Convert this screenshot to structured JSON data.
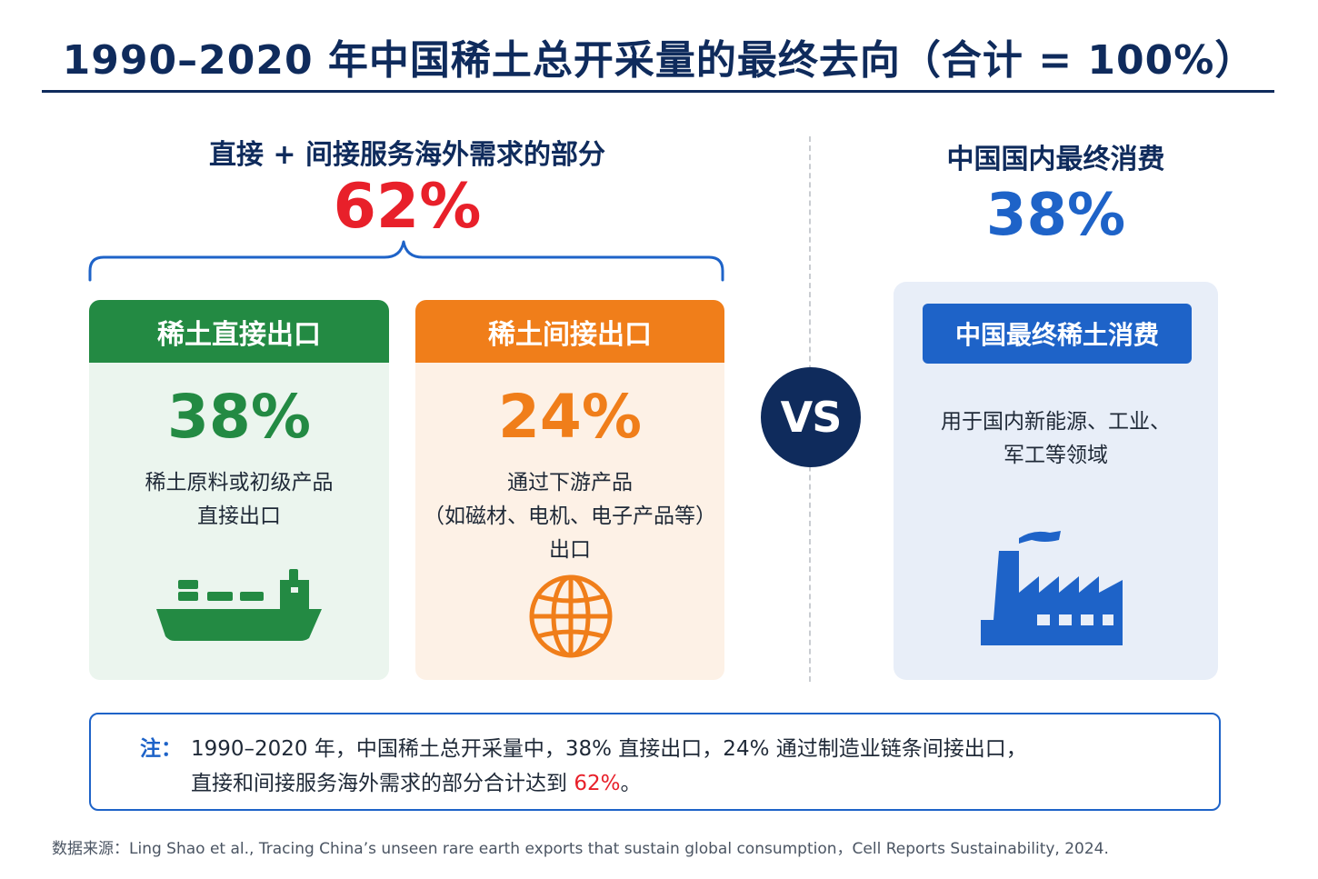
{
  "title": "1990–2020 年中国稀土总开采量的最终去向（合计 = 100%）",
  "left_group": {
    "heading": "直接 + 间接服务海外需求的部分",
    "percent": "62%"
  },
  "right_group": {
    "heading": "中国国内最终消费",
    "percent": "38%"
  },
  "cards": {
    "direct": {
      "header": "稀土直接出口",
      "value": "38%",
      "desc": [
        "稀土原料或初级产品",
        "直接出口"
      ],
      "icon": "cargo-ship-icon"
    },
    "indirect": {
      "header": "稀土间接出口",
      "value": "24%",
      "desc": [
        "通过下游产品",
        "（如磁材、电机、电子产品等）",
        "出口"
      ],
      "icon": "globe-icon"
    },
    "domestic": {
      "header": "中国最终稀土消费",
      "desc": [
        "用于国内新能源、工业、",
        "军工等领域"
      ],
      "icon": "factory-icon"
    }
  },
  "vs_label": "VS",
  "note": {
    "label": "注：",
    "line1": "1990–2020 年，中国稀土总开采量中，38% 直接出口，24% 通过制造业链条间接出口，",
    "line2_prefix": "直接和间接服务海外需求的部分合计达到 ",
    "line2_highlight": "62%",
    "line2_suffix": "。"
  },
  "source": "数据来源：Ling Shao et al., Tracing China’s unseen rare earth exports that sustain global consumption，Cell Reports Sustainability, 2024.",
  "colors": {
    "navy": "#0f2b5c",
    "red": "#e8202a",
    "blue": "#1e63c8",
    "green": "#238a43",
    "orange": "#f07e1a"
  }
}
